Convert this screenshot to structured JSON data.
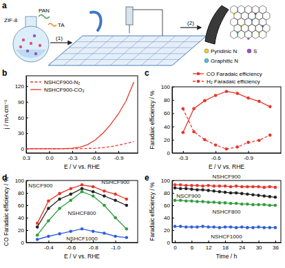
{
  "chart_data": [
    {
      "type": "line",
      "title": "b",
      "x_label": "E / V vs. RHE",
      "y_label": "j / mA cm⁻²",
      "x": [
        0.3,
        0.2,
        0.1,
        0,
        -0.1,
        -0.2,
        -0.3,
        -0.4,
        -0.5,
        -0.6,
        -0.7,
        -0.8,
        -0.9,
        -1,
        -1.1
      ],
      "xlim": [
        0.3,
        -1.15
      ],
      "xticks": [
        0.3,
        {
          "value": 0,
          "label": "0.0"
        },
        -0.3,
        -0.6,
        -0.9
      ],
      "ylim": [
        -8,
        140
      ],
      "yticks": [
        0,
        30,
        60,
        90,
        120
      ],
      "legend": "upper left",
      "series": [
        {
          "name": "NSHCF900-N₂",
          "color": "#e8352a",
          "line_style": "dashed",
          "values": [
            0,
            0,
            0,
            0,
            0,
            0,
            0,
            0.2,
            0.5,
            1,
            2,
            4,
            7,
            10,
            14
          ]
        },
        {
          "name": "NSHCF900-CO₂",
          "color": "#e8352a",
          "line_style": "solid",
          "values": [
            0,
            0,
            0,
            0,
            0,
            0.3,
            1,
            3,
            8,
            17,
            30,
            47,
            67,
            92,
            128
          ]
        }
      ]
    },
    {
      "type": "line",
      "title": "c",
      "x_label": "E / V vs. RHE",
      "y_label": "Faradaic efficiency / %",
      "x": [
        -0.3,
        -0.4,
        -0.5,
        -0.6,
        -0.7,
        -0.8,
        -0.9,
        -1,
        -1.1
      ],
      "xlim": [
        -0.2,
        -1.2
      ],
      "xticks": [
        -0.3,
        -0.6,
        -0.9
      ],
      "ylim": [
        0,
        100
      ],
      "yticks": [
        0,
        20,
        40,
        60,
        80,
        100
      ],
      "legend": "top",
      "series": [
        {
          "name": "CO Faradaic efficiency",
          "color": "#e8352a",
          "marker": "circle",
          "line_style": "solid",
          "values": [
            31,
            67,
            79,
            87,
            93,
            90,
            83,
            78,
            70
          ]
        },
        {
          "name": "H₂ Faradaic efficiency",
          "color": "#e8352a",
          "marker": "circle",
          "line_style": "dashed",
          "values": [
            67,
            32,
            20,
            12,
            6,
            9,
            16,
            19,
            27
          ]
        }
      ]
    },
    {
      "type": "line",
      "title": "d",
      "x_label": "E / V vs. RHE",
      "y_label": "CO Faradaic efficiency / %",
      "x": [
        -0.3,
        -0.4,
        -0.5,
        -0.6,
        -0.7,
        -0.8,
        -0.9,
        -1,
        -1.1
      ],
      "xlim": [
        -0.2,
        -1.2
      ],
      "xticks": [
        -0.4,
        -0.6,
        -0.8,
        {
          "value": -1,
          "label": "-1.0"
        }
      ],
      "ylim": [
        0,
        100
      ],
      "yticks": [
        0,
        20,
        40,
        60,
        80,
        100
      ],
      "series": [
        {
          "name": "NSHCF900",
          "color": "#e8352a",
          "marker": "circle",
          "line_style": "solid",
          "values": [
            31,
            67,
            79,
            87,
            93,
            90,
            83,
            78,
            70
          ]
        },
        {
          "name": "NSCF900",
          "color": "#222222",
          "marker": "circle",
          "line_style": "solid",
          "values": [
            25,
            55,
            70,
            78,
            87,
            82,
            75,
            68,
            60
          ]
        },
        {
          "name": "NSHCF800",
          "color": "#2e9e3e",
          "marker": "circle",
          "line_style": "solid",
          "values": [
            12,
            35,
            55,
            68,
            82,
            75,
            60,
            40,
            22
          ]
        },
        {
          "name": "NSHCF1000",
          "color": "#2f5fd8",
          "marker": "circle",
          "line_style": "solid",
          "values": [
            5,
            10,
            14,
            18,
            22,
            18,
            15,
            10,
            8
          ]
        }
      ]
    },
    {
      "type": "line",
      "title": "e",
      "x_label": "Time / h",
      "y_label": "Faradaic efficiency / %",
      "x": [
        0,
        2,
        4,
        6,
        8,
        10,
        12,
        14,
        16,
        18,
        20,
        22,
        24,
        26,
        28,
        30,
        32,
        34,
        36
      ],
      "xlim": [
        -1,
        38
      ],
      "xticks": [
        0,
        6,
        12,
        18,
        24,
        30,
        36
      ],
      "ylim": [
        0,
        100
      ],
      "yticks": [
        0,
        20,
        40,
        60,
        80,
        100
      ],
      "series": [
        {
          "name": "NSHCF900",
          "color": "#e8352a",
          "marker": "circle",
          "line_style": "solid",
          "values": [
            93,
            93,
            92,
            92,
            92,
            91,
            92,
            91,
            91,
            91,
            90,
            91,
            90,
            90,
            90,
            90,
            89,
            90,
            89
          ]
        },
        {
          "name": "NSCF900",
          "color": "#222222",
          "marker": "circle",
          "line_style": "solid",
          "values": [
            88,
            87,
            87,
            86,
            85,
            85,
            84,
            83,
            82,
            81,
            80,
            80,
            79,
            78,
            77,
            76,
            75,
            74,
            73
          ]
        },
        {
          "name": "NSHCF800",
          "color": "#2e9e3e",
          "marker": "circle",
          "line_style": "solid",
          "values": [
            68,
            68,
            67,
            67,
            66,
            66,
            65,
            65,
            64,
            64,
            63,
            63,
            62,
            62,
            61,
            61,
            61,
            60,
            60
          ]
        },
        {
          "name": "NSHCF1000",
          "color": "#2f5fd8",
          "marker": "circle",
          "line_style": "solid",
          "values": [
            26,
            26,
            25,
            25,
            25,
            26,
            25,
            25,
            24,
            25,
            25,
            24,
            25,
            24,
            24,
            25,
            24,
            24,
            24
          ]
        }
      ]
    }
  ],
  "diagram": {
    "label": "a",
    "labels": {
      "pan": "PAN",
      "ta": "TA",
      "zif8": "ZIF-8",
      "step1": "(1)",
      "step2": "(2)"
    },
    "legend": [
      {
        "name": "Pyridinic N",
        "color": "#f2d21b"
      },
      {
        "name": "S",
        "color": "#9b4fc8"
      },
      {
        "name": "Graphitic N",
        "color": "#3ec6e0"
      }
    ]
  }
}
